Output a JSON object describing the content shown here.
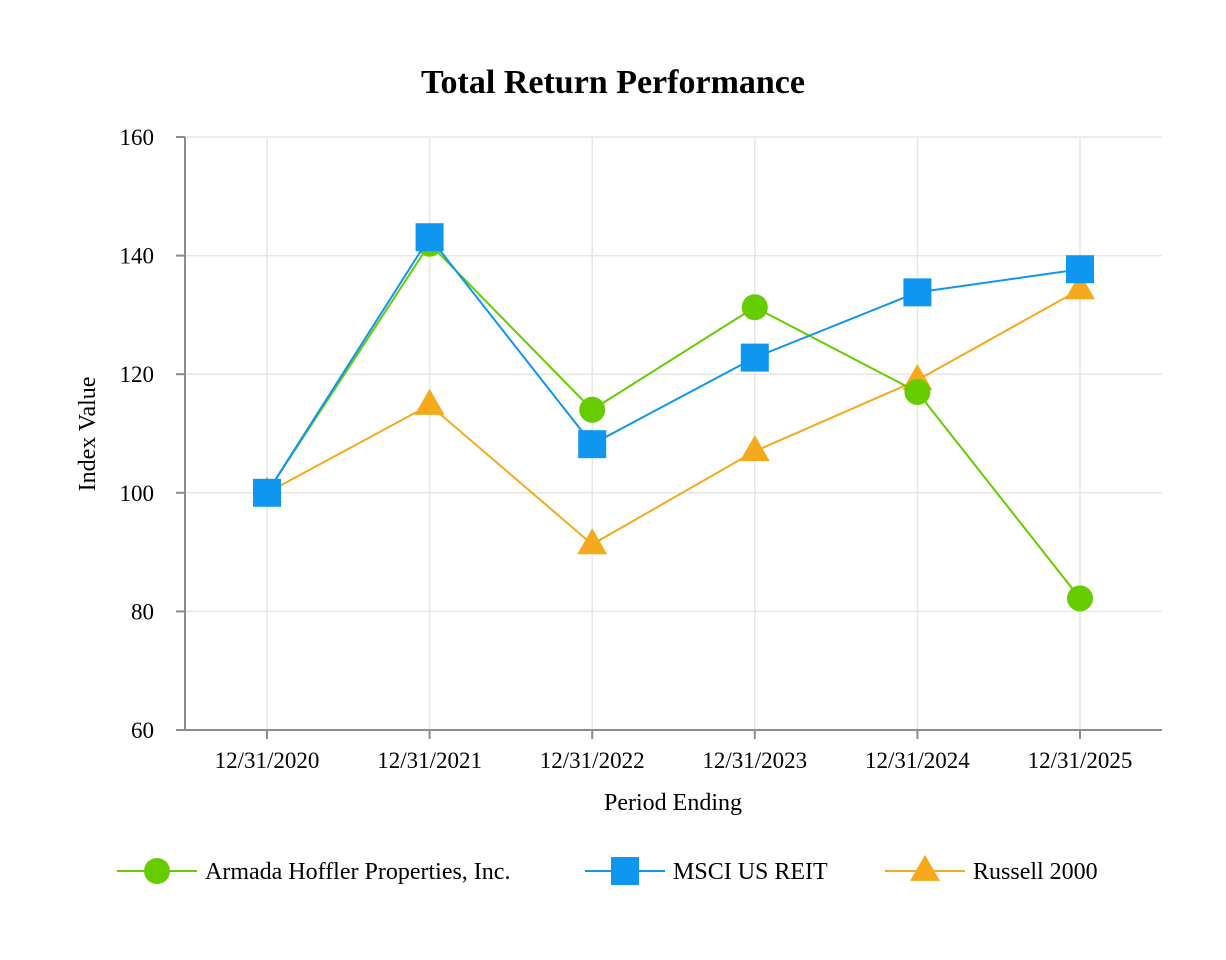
{
  "chart_data": {
    "type": "line",
    "title": "Total Return Performance",
    "xlabel": "Period Ending",
    "ylabel": "Index Value",
    "categories": [
      "12/31/2020",
      "12/31/2021",
      "12/31/2022",
      "12/31/2023",
      "12/31/2024",
      "12/31/2025"
    ],
    "ylim": [
      60,
      160
    ],
    "yticks": [
      60,
      80,
      100,
      120,
      140,
      160
    ],
    "grid": true,
    "legend_position": "bottom",
    "series": [
      {
        "name": "Armada Hoffler Properties, Inc.",
        "marker": "circle",
        "color": "#66cc00",
        "values": [
          100,
          142,
          114,
          131.3,
          117,
          82.2
        ]
      },
      {
        "name": "MSCI US REIT",
        "marker": "square",
        "color": "#0f96f0",
        "values": [
          100,
          143.1,
          108.2,
          122.8,
          133.8,
          137.7
        ]
      },
      {
        "name": "Russell 2000",
        "marker": "triangle",
        "color": "#f5a91d",
        "values": [
          100,
          114.8,
          91.3,
          107,
          119,
          134.3
        ]
      }
    ]
  }
}
